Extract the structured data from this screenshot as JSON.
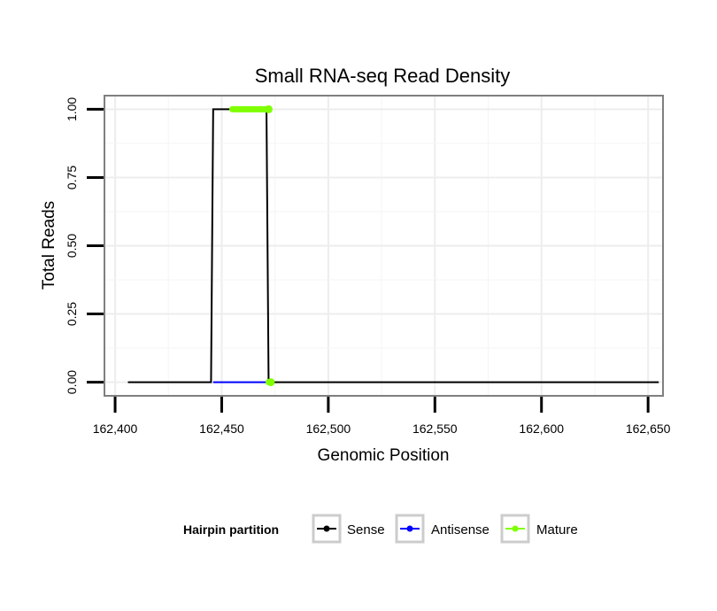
{
  "chart_data": {
    "type": "line",
    "title": "Small RNA-seq Read Density",
    "xlabel": "Genomic Position",
    "ylabel": "Total Reads",
    "xlim": [
      162395,
      162657
    ],
    "ylim": [
      -0.05,
      1.05
    ],
    "x_ticks": [
      162400,
      162450,
      162500,
      162550,
      162600,
      162650
    ],
    "x_tick_labels": [
      "162,400",
      "162,450",
      "162,500",
      "162,550",
      "162,600",
      "162,650"
    ],
    "y_ticks": [
      0,
      0.25,
      0.5,
      0.75,
      1.0
    ],
    "y_tick_labels": [
      "0.00",
      "0.25",
      "0.50",
      "0.75",
      "1.00"
    ],
    "grid": true,
    "series": [
      {
        "name": "Sense",
        "color": "#000000",
        "x": [
          162406,
          162445,
          162446,
          162471,
          162472,
          162655
        ],
        "y": [
          0,
          0,
          1,
          1,
          0,
          0
        ]
      },
      {
        "name": "Antisense",
        "color": "#0000ff",
        "x": [
          162446,
          162472
        ],
        "y": [
          0,
          0
        ]
      },
      {
        "name": "Mature",
        "color": "#7fff00",
        "segments": [
          {
            "x": [
              162455,
              162472
            ],
            "y": [
              1,
              1
            ]
          },
          {
            "x": [
              162472,
              162473
            ],
            "y": [
              0,
              0
            ]
          }
        ]
      }
    ],
    "legend": {
      "title": "Hairpin partition",
      "position": "bottom",
      "entries": [
        {
          "label": "Sense",
          "color": "#000000"
        },
        {
          "label": "Antisense",
          "color": "#0000ff"
        },
        {
          "label": "Mature",
          "color": "#7fff00"
        }
      ]
    }
  }
}
